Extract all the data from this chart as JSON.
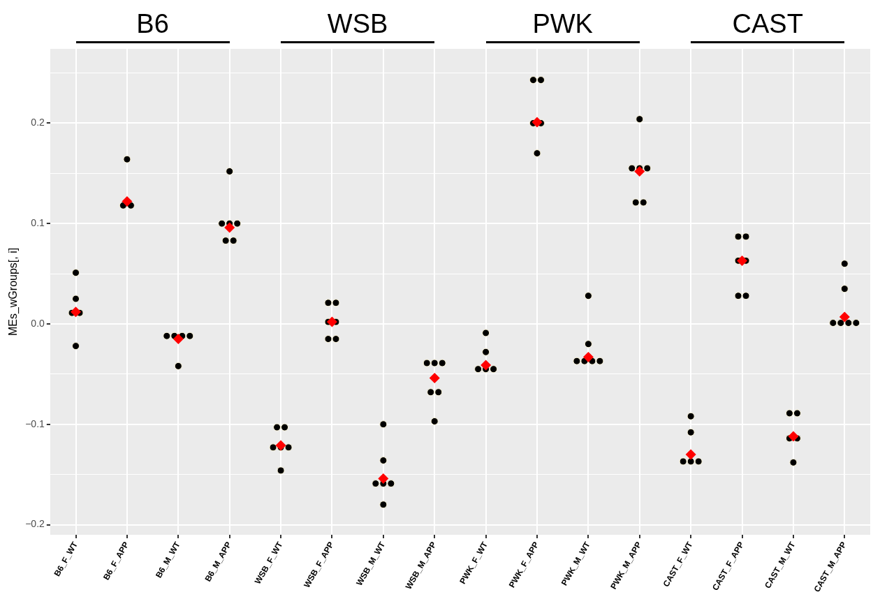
{
  "chart_data": {
    "type": "scatter",
    "ylabel": "MEs_wGroups[, i]",
    "annotations": [
      "B6",
      "WSB",
      "PWK",
      "CAST"
    ],
    "categories": [
      "B6_F_WT",
      "B6_F_APP",
      "B6_M_WT",
      "B6_M_APP",
      "WSB_F_WT",
      "WSB_F_APP",
      "WSB_M_WT",
      "WSB_M_APP",
      "PWK_F_WT",
      "PWK_F_APP",
      "PWK_M_WT",
      "PWK_M_APP",
      "CAST_F_WT",
      "CAST_F_APP",
      "CAST_M_WT",
      "CAST_M_APP"
    ],
    "series": [
      {
        "type": "scatter",
        "color": "#000000",
        "marker": "circle",
        "x": [
          "B6_F_WT",
          "B6_F_WT",
          "B6_F_WT",
          "B6_F_WT",
          "B6_F_WT",
          "B6_F_APP",
          "B6_F_APP",
          "B6_F_APP",
          "B6_M_WT",
          "B6_M_WT",
          "B6_M_WT",
          "B6_M_WT",
          "B6_M_WT",
          "B6_M_APP",
          "B6_M_APP",
          "B6_M_APP",
          "B6_M_APP",
          "B6_M_APP",
          "B6_M_APP",
          "WSB_F_WT",
          "WSB_F_WT",
          "WSB_F_WT",
          "WSB_F_WT",
          "WSB_F_WT",
          "WSB_F_WT",
          "WSB_F_APP",
          "WSB_F_APP",
          "WSB_F_APP",
          "WSB_F_APP",
          "WSB_F_APP",
          "WSB_F_APP",
          "WSB_M_WT",
          "WSB_M_WT",
          "WSB_M_WT",
          "WSB_M_WT",
          "WSB_M_WT",
          "WSB_M_WT",
          "WSB_M_APP",
          "WSB_M_APP",
          "WSB_M_APP",
          "WSB_M_APP",
          "WSB_M_APP",
          "WSB_M_APP",
          "PWK_F_WT",
          "PWK_F_WT",
          "PWK_F_WT",
          "PWK_F_WT",
          "PWK_F_WT",
          "PWK_F_APP",
          "PWK_F_APP",
          "PWK_F_APP",
          "PWK_F_APP",
          "PWK_F_APP",
          "PWK_M_WT",
          "PWK_M_WT",
          "PWK_M_WT",
          "PWK_M_WT",
          "PWK_M_WT",
          "PWK_M_WT",
          "PWK_M_APP",
          "PWK_M_APP",
          "PWK_M_APP",
          "PWK_M_APP",
          "PWK_M_APP",
          "PWK_M_APP",
          "CAST_F_WT",
          "CAST_F_WT",
          "CAST_F_WT",
          "CAST_F_WT",
          "CAST_F_WT",
          "CAST_F_APP",
          "CAST_F_APP",
          "CAST_F_APP",
          "CAST_F_APP",
          "CAST_F_APP",
          "CAST_F_APP",
          "CAST_M_WT",
          "CAST_M_WT",
          "CAST_M_WT",
          "CAST_M_WT",
          "CAST_M_WT",
          "CAST_M_APP",
          "CAST_M_APP",
          "CAST_M_APP",
          "CAST_M_APP",
          "CAST_M_APP",
          "CAST_M_APP"
        ],
        "values": [
          0.051,
          0.025,
          0.011,
          0.011,
          -0.022,
          0.164,
          0.118,
          0.118,
          -0.012,
          -0.012,
          -0.012,
          -0.012,
          -0.042,
          0.152,
          0.1,
          0.1,
          0.1,
          0.083,
          0.083,
          -0.103,
          -0.103,
          -0.123,
          -0.123,
          -0.123,
          -0.146,
          0.021,
          0.021,
          0.002,
          0.002,
          -0.015,
          -0.015,
          -0.1,
          -0.136,
          -0.159,
          -0.159,
          -0.159,
          -0.18,
          -0.039,
          -0.039,
          -0.039,
          -0.068,
          -0.068,
          -0.097,
          -0.009,
          -0.028,
          -0.045,
          -0.045,
          -0.045,
          0.243,
          0.243,
          0.2,
          0.2,
          0.17,
          0.028,
          -0.02,
          -0.037,
          -0.037,
          -0.037,
          -0.037,
          0.204,
          0.155,
          0.155,
          0.155,
          0.121,
          0.121,
          -0.092,
          -0.108,
          -0.137,
          -0.137,
          -0.137,
          0.087,
          0.087,
          0.063,
          0.063,
          0.028,
          0.028,
          -0.089,
          -0.089,
          -0.114,
          -0.114,
          -0.138,
          0.06,
          0.035,
          0.001,
          0.001,
          0.001,
          0.001
        ]
      },
      {
        "type": "scatter",
        "color": "#ff0000",
        "marker": "diamond",
        "values": [
          0.012,
          0.122,
          -0.015,
          0.096,
          -0.121,
          0.002,
          -0.154,
          -0.054,
          -0.041,
          0.201,
          -0.033,
          0.152,
          -0.13,
          0.063,
          -0.112,
          0.007
        ]
      }
    ],
    "ylim": [
      -0.21,
      0.274
    ],
    "yticks": [
      {
        "value": -0.2,
        "label": "−0.2"
      },
      {
        "value": -0.15,
        "label": null
      },
      {
        "value": -0.1,
        "label": "−0.1"
      },
      {
        "value": -0.05,
        "label": null
      },
      {
        "value": 0,
        "label": "0.0"
      },
      {
        "value": 0.05,
        "label": null
      },
      {
        "value": 0.1,
        "label": "0.1"
      },
      {
        "value": 0.15,
        "label": null
      },
      {
        "value": 0.2,
        "label": "0.2"
      },
      {
        "value": 0.25,
        "label": null
      }
    ],
    "grid": true,
    "legend": false
  }
}
